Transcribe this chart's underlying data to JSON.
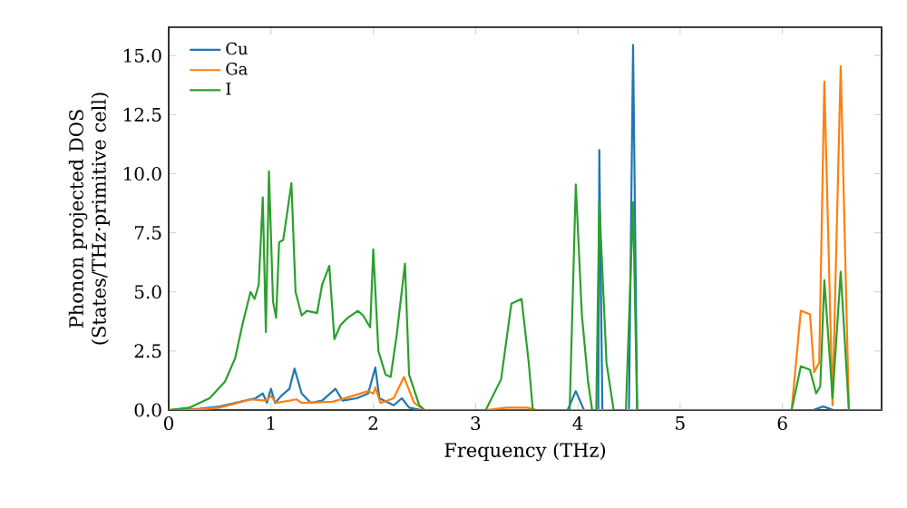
{
  "chart_data": {
    "type": "line",
    "xlabel": "Frequency (THz)",
    "ylabel": "Phonon projected DOS (States/THz·primitive cell)",
    "xlim": [
      0,
      6.97
    ],
    "ylim": [
      0,
      16.2
    ],
    "xticks": [
      0,
      1,
      2,
      3,
      4,
      5,
      6
    ],
    "yticks": [
      {
        "value": 0,
        "label": "0.0"
      },
      {
        "value": 2.5,
        "label": "2.5"
      },
      {
        "value": 5,
        "label": "5.0"
      },
      {
        "value": 7.5,
        "label": "7.5"
      },
      {
        "value": 10,
        "label": "10.0"
      },
      {
        "value": 12.5,
        "label": "12.5"
      },
      {
        "value": 15,
        "label": "15.0"
      }
    ],
    "legend": "top left",
    "grid": false,
    "series": [
      {
        "name": "Cu",
        "color": "#1f77b4",
        "x": [
          0,
          0.3,
          0.5,
          0.7,
          0.85,
          0.92,
          0.96,
          1.0,
          1.04,
          1.1,
          1.18,
          1.23,
          1.3,
          1.39,
          1.5,
          1.63,
          1.7,
          1.84,
          1.95,
          2.02,
          2.06,
          2.2,
          2.28,
          2.35,
          2.47,
          3.9,
          3.98,
          4.06,
          4.15,
          4.2,
          4.21,
          4.24,
          4.3,
          4.5,
          4.54,
          4.58,
          6.3,
          6.4,
          6.5,
          6.97
        ],
        "values": [
          0,
          0.05,
          0.15,
          0.35,
          0.5,
          0.7,
          0.3,
          0.9,
          0.3,
          0.6,
          0.9,
          1.75,
          0.7,
          0.3,
          0.4,
          0.9,
          0.4,
          0.5,
          0.7,
          1.8,
          0.5,
          0.2,
          0.5,
          0.1,
          0,
          0,
          0.8,
          0,
          0,
          0,
          11.0,
          0,
          0,
          0,
          15.45,
          0,
          0,
          0.15,
          0,
          0
        ]
      },
      {
        "name": "Ga",
        "color": "#ff7f0e",
        "x": [
          0,
          0.3,
          0.5,
          0.8,
          0.95,
          1.0,
          1.05,
          1.25,
          1.3,
          1.6,
          1.8,
          1.95,
          2.0,
          2.02,
          2.07,
          2.2,
          2.3,
          2.4,
          2.5,
          3.1,
          3.3,
          3.5,
          3.6,
          6.09,
          6.18,
          6.27,
          6.31,
          6.36,
          6.41,
          6.49,
          6.57,
          6.65,
          6.97
        ],
        "values": [
          0,
          0.03,
          0.1,
          0.45,
          0.4,
          0.6,
          0.3,
          0.45,
          0.3,
          0.35,
          0.6,
          0.8,
          0.7,
          0.95,
          0.3,
          0.5,
          1.4,
          0.3,
          0,
          0,
          0.1,
          0.1,
          0,
          0,
          4.2,
          4.05,
          1.6,
          2.0,
          13.9,
          0.2,
          14.55,
          0,
          0
        ]
      },
      {
        "name": "I",
        "color": "#2ca02c",
        "x": [
          0,
          0.2,
          0.4,
          0.55,
          0.65,
          0.72,
          0.8,
          0.84,
          0.88,
          0.92,
          0.95,
          0.98,
          1.02,
          1.05,
          1.08,
          1.12,
          1.2,
          1.24,
          1.3,
          1.35,
          1.45,
          1.5,
          1.57,
          1.62,
          1.68,
          1.75,
          1.85,
          1.9,
          1.97,
          2.0,
          2.05,
          2.12,
          2.17,
          2.23,
          2.31,
          2.35,
          2.45,
          2.5,
          3.1,
          3.25,
          3.35,
          3.45,
          3.52,
          3.56,
          3.92,
          3.98,
          4.04,
          4.1,
          4.14,
          4.18,
          4.21,
          4.28,
          4.35,
          4.47,
          4.54,
          4.58,
          6.09,
          6.18,
          6.27,
          6.33,
          6.37,
          6.41,
          6.49,
          6.57,
          6.65,
          6.97
        ],
        "values": [
          0,
          0.1,
          0.5,
          1.2,
          2.2,
          3.6,
          5.0,
          4.7,
          5.3,
          9.0,
          3.3,
          10.1,
          4.6,
          3.9,
          7.1,
          7.2,
          9.6,
          5.0,
          4.0,
          4.2,
          4.1,
          5.3,
          6.1,
          3.0,
          3.6,
          3.9,
          4.2,
          4.0,
          3.5,
          6.8,
          2.5,
          1.5,
          1.4,
          3.2,
          6.2,
          1.5,
          0.2,
          0,
          0,
          1.3,
          4.5,
          4.7,
          2.0,
          0,
          0,
          9.55,
          4.0,
          1.2,
          0,
          0,
          8.8,
          2.0,
          0,
          0,
          8.8,
          0,
          0,
          1.85,
          1.7,
          0.7,
          1.0,
          5.5,
          0.5,
          5.85,
          0,
          0
        ]
      }
    ]
  }
}
